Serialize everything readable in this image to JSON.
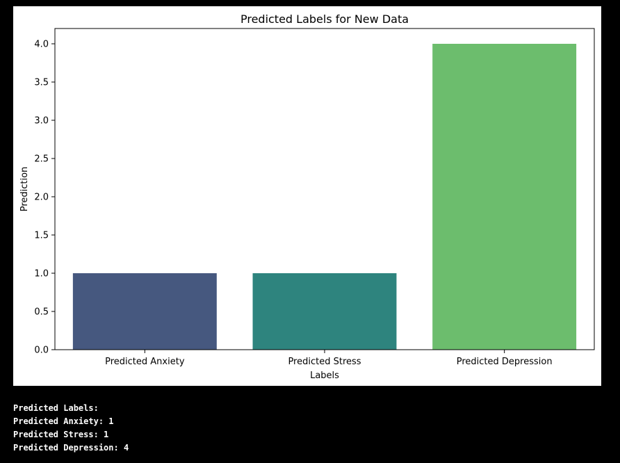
{
  "chart_data": {
    "type": "bar",
    "title": "Predicted Labels for New Data",
    "xlabel": "Labels",
    "ylabel": "Prediction",
    "categories": [
      "Predicted Anxiety",
      "Predicted Stress",
      "Predicted Depression"
    ],
    "values": [
      1,
      1,
      4
    ],
    "colors": [
      "#46587f",
      "#2e847e",
      "#6cbd6d"
    ],
    "ylim": [
      0,
      4.2
    ],
    "yticks": [
      0.0,
      0.5,
      1.0,
      1.5,
      2.0,
      2.5,
      3.0,
      3.5,
      4.0
    ],
    "grid": false,
    "legend": null
  },
  "console": {
    "lines": [
      "Predicted Labels:",
      "Predicted Anxiety: 1",
      "Predicted Stress: 1",
      "Predicted Depression: 4"
    ]
  }
}
